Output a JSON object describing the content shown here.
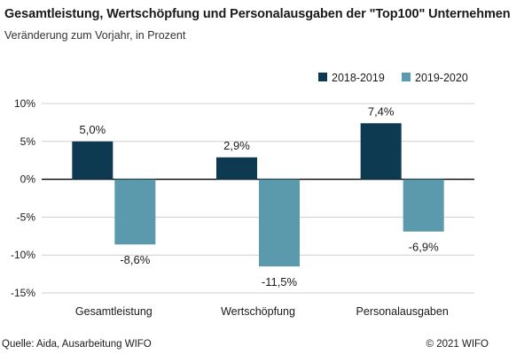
{
  "chart_data": {
    "type": "bar",
    "title": "Gesamtleistung, Wertschöpfung und Personalausgaben der \"Top100\" Unternehmen",
    "subtitle": "Veränderung zum Vorjahr, in Prozent",
    "categories": [
      "Gesamtleistung",
      "Wertschöpfung",
      "Personalausgaben"
    ],
    "series": [
      {
        "name": "2018-2019",
        "values": [
          5.0,
          2.9,
          7.4
        ],
        "labels": [
          "5,0%",
          "2,9%",
          "7,4%"
        ],
        "color": "#0d3a50"
      },
      {
        "name": "2019-2020",
        "values": [
          -8.6,
          -11.5,
          -6.9
        ],
        "labels": [
          "-8,6%",
          "-11,5%",
          "-6,9%"
        ],
        "color": "#5b99ad"
      }
    ],
    "ylim": [
      -15,
      10
    ],
    "yticks": [
      10,
      5,
      0,
      -5,
      -10,
      -15
    ],
    "ytick_labels": [
      "10%",
      "5%",
      "0%",
      "-5%",
      "-10%",
      "-15%"
    ],
    "grid": true,
    "legend_position": "top-right"
  },
  "footer": {
    "source": "Quelle: Aida, Ausarbeitung WIFO",
    "copyright": "© 2021 WIFO"
  }
}
